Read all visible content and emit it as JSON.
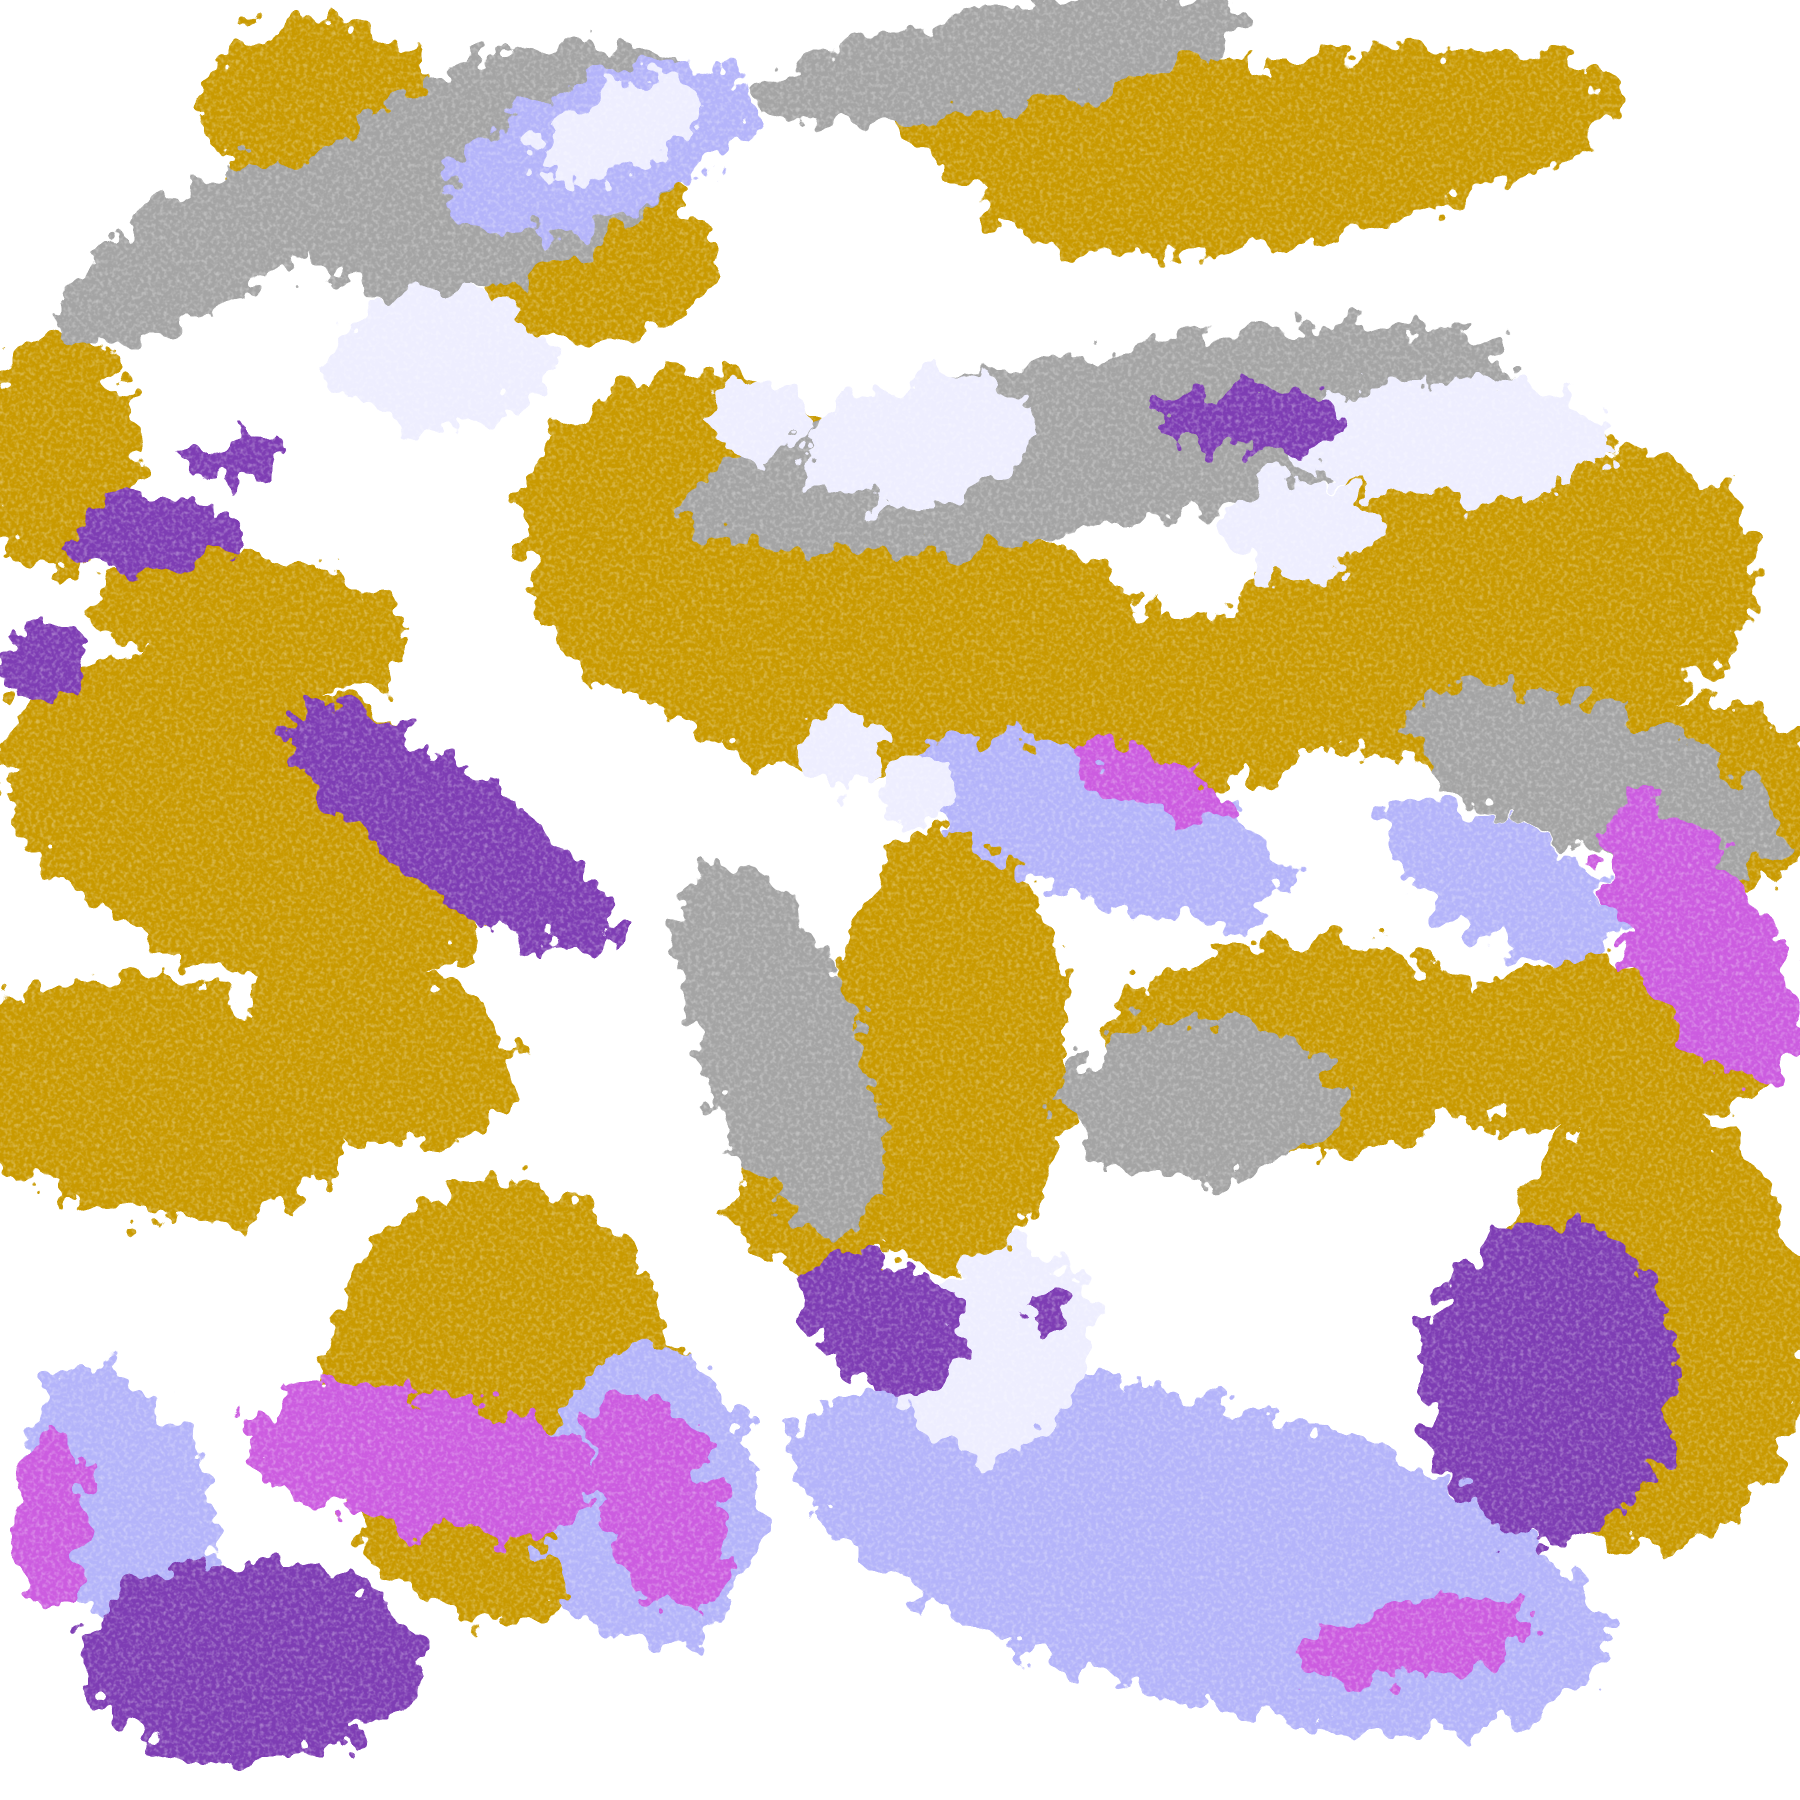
{
  "map": {
    "kind": "false-color satellite cloud imagery",
    "palette": {
      "clear": "#ffffff",
      "gold": "#c99a00",
      "gray": "#a4a4a4",
      "lavender_light": "#eeeeff",
      "periwinkle": "#b4b4fa",
      "magenta": "#cc5ce0",
      "purple": "#7e3cb4"
    }
  }
}
